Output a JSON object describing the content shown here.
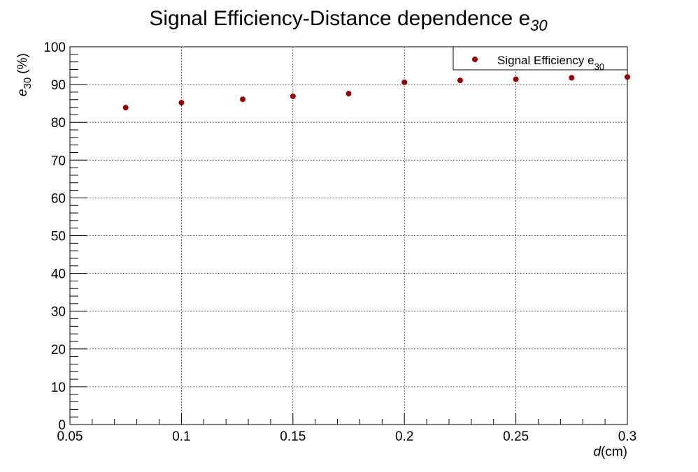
{
  "chart_data": {
    "type": "scatter",
    "title": "Signal Efficiency-Distance dependence e",
    "title_subscript": "30",
    "xlabel_var": "d",
    "xlabel_unit": "(cm)",
    "ylabel_var": "e",
    "ylabel_sub": "30",
    "ylabel_unit": "(%)",
    "xlim": [
      0.05,
      0.3
    ],
    "ylim": [
      0,
      100
    ],
    "x_ticks": [
      "0.05",
      "0.1",
      "0.15",
      "0.2",
      "0.25",
      "0.3"
    ],
    "y_ticks": [
      "0",
      "10",
      "20",
      "30",
      "40",
      "50",
      "60",
      "70",
      "80",
      "90",
      "100"
    ],
    "grid": true,
    "legend_position": "top-right",
    "marker_color": "#990000",
    "series": [
      {
        "name": "Signal Efficiency e",
        "name_subscript": "30",
        "x": [
          0.075,
          0.1,
          0.1275,
          0.15,
          0.175,
          0.2,
          0.225,
          0.25,
          0.275,
          0.3
        ],
        "y": [
          83.9,
          85.2,
          86.1,
          86.9,
          87.6,
          90.6,
          91.1,
          91.4,
          91.8,
          92.0
        ]
      }
    ]
  }
}
